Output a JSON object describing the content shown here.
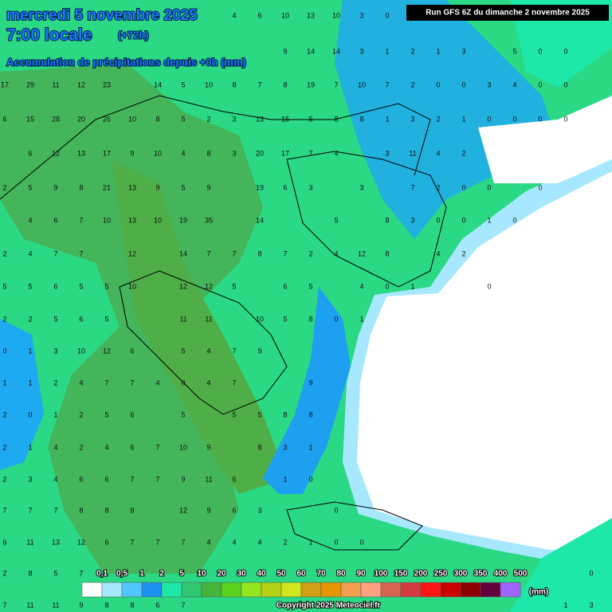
{
  "header": {
    "date": "mercredi 5 novembre 2025",
    "time": "7:00 locale",
    "lead": "(+72h)",
    "subtitle": "Accumulation de précipitations depuis +0h (mm)",
    "run": "Run GFS 6Z du dimanche 2 novembre 2025"
  },
  "map": {
    "rows": [
      [
        null,
        null,
        null,
        null,
        null,
        null,
        null,
        null,
        null,
        4,
        6,
        10,
        13,
        10,
        3,
        0,
        null,
        null,
        null,
        null,
        null,
        null,
        null,
        null
      ],
      [
        null,
        null,
        null,
        null,
        null,
        null,
        null,
        null,
        null,
        null,
        null,
        9,
        14,
        14,
        3,
        1,
        2,
        1,
        3,
        null,
        5,
        0,
        0,
        null
      ],
      [
        17,
        29,
        11,
        12,
        23,
        null,
        14,
        5,
        10,
        8,
        7,
        8,
        19,
        7,
        10,
        7,
        2,
        0,
        0,
        3,
        4,
        0,
        0,
        null
      ],
      [
        6,
        15,
        28,
        20,
        26,
        10,
        8,
        5,
        2,
        3,
        13,
        15,
        5,
        8,
        8,
        1,
        3,
        2,
        1,
        0,
        0,
        0,
        0,
        null
      ],
      [
        null,
        6,
        12,
        13,
        17,
        9,
        10,
        4,
        8,
        3,
        20,
        17,
        7,
        4,
        null,
        3,
        11,
        4,
        2,
        null,
        null,
        null,
        null,
        null
      ],
      [
        2,
        5,
        9,
        8,
        21,
        13,
        9,
        5,
        9,
        null,
        19,
        6,
        3,
        null,
        3,
        null,
        7,
        2,
        0,
        0,
        null,
        0,
        null,
        null
      ],
      [
        null,
        4,
        6,
        7,
        10,
        13,
        10,
        19,
        35,
        null,
        14,
        null,
        null,
        5,
        null,
        8,
        3,
        0,
        0,
        1,
        0,
        null,
        null,
        null
      ],
      [
        2,
        4,
        7,
        7,
        null,
        12,
        null,
        14,
        7,
        7,
        8,
        7,
        2,
        4,
        12,
        8,
        null,
        4,
        2,
        null,
        null,
        null,
        null,
        null
      ],
      [
        5,
        5,
        6,
        5,
        5,
        10,
        null,
        12,
        12,
        5,
        null,
        6,
        5,
        null,
        4,
        0,
        1,
        null,
        null,
        0,
        null,
        null,
        null,
        null
      ],
      [
        2,
        2,
        5,
        6,
        5,
        null,
        null,
        11,
        11,
        null,
        10,
        5,
        8,
        0,
        1,
        null,
        null,
        null,
        null,
        null,
        null,
        null,
        null,
        null
      ],
      [
        0,
        1,
        3,
        10,
        12,
        6,
        null,
        5,
        4,
        7,
        9,
        null,
        null,
        null,
        null,
        null,
        null,
        null,
        null,
        null,
        null,
        null,
        null,
        null
      ],
      [
        1,
        1,
        2,
        4,
        7,
        7,
        4,
        0,
        4,
        7,
        null,
        null,
        9,
        null,
        null,
        null,
        null,
        null,
        null,
        null,
        null,
        null,
        null,
        null
      ],
      [
        2,
        0,
        1,
        2,
        5,
        6,
        null,
        5,
        null,
        5,
        5,
        8,
        8,
        null,
        null,
        null,
        null,
        null,
        null,
        null,
        null,
        null,
        null,
        null
      ],
      [
        2,
        1,
        4,
        2,
        4,
        6,
        7,
        10,
        9,
        null,
        8,
        3,
        1,
        null,
        null,
        null,
        null,
        null,
        null,
        null,
        null,
        null,
        null,
        null
      ],
      [
        2,
        3,
        4,
        6,
        6,
        7,
        7,
        9,
        11,
        6,
        null,
        1,
        0,
        null,
        null,
        null,
        null,
        null,
        null,
        null,
        null,
        null,
        null,
        null
      ],
      [
        7,
        7,
        7,
        8,
        8,
        8,
        null,
        12,
        9,
        6,
        3,
        null,
        null,
        0,
        null,
        null,
        null,
        null,
        null,
        null,
        null,
        null,
        null,
        null
      ],
      [
        6,
        11,
        13,
        12,
        6,
        7,
        7,
        7,
        4,
        4,
        4,
        2,
        1,
        0,
        0,
        null,
        null,
        null,
        null,
        null,
        null,
        null,
        null,
        null
      ],
      [
        2,
        8,
        5,
        7,
        null,
        null,
        null,
        null,
        null,
        null,
        null,
        null,
        null,
        null,
        null,
        null,
        null,
        null,
        null,
        null,
        null,
        null,
        null,
        0
      ],
      [
        7,
        11,
        11,
        9,
        8,
        8,
        6,
        7,
        null,
        null,
        null,
        null,
        null,
        null,
        null,
        null,
        null,
        null,
        null,
        null,
        null,
        null,
        1,
        3
      ]
    ]
  },
  "legend": {
    "labels": [
      "0,1",
      "0,5",
      "1",
      "2",
      "5",
      "10",
      "20",
      "30",
      "40",
      "50",
      "60",
      "70",
      "80",
      "90",
      "100",
      "150",
      "200",
      "250",
      "300",
      "350",
      "400",
      "500"
    ],
    "colors": [
      "#ffffff",
      "#a8e8ff",
      "#50c8ff",
      "#1e90f0",
      "#1ee8a8",
      "#30c870",
      "#46b43c",
      "#5ad21e",
      "#96e61e",
      "#b4d214",
      "#d2e61e",
      "#d2a014",
      "#e69600",
      "#f0a050",
      "#ffa080",
      "#d26450",
      "#d23c3c",
      "#ff1414",
      "#c80000",
      "#8c0000",
      "#64003c",
      "#a064ff"
    ],
    "unit": "(mm)"
  },
  "footer": {
    "copyright": "Copyright 2025 Meteociel.fr"
  }
}
